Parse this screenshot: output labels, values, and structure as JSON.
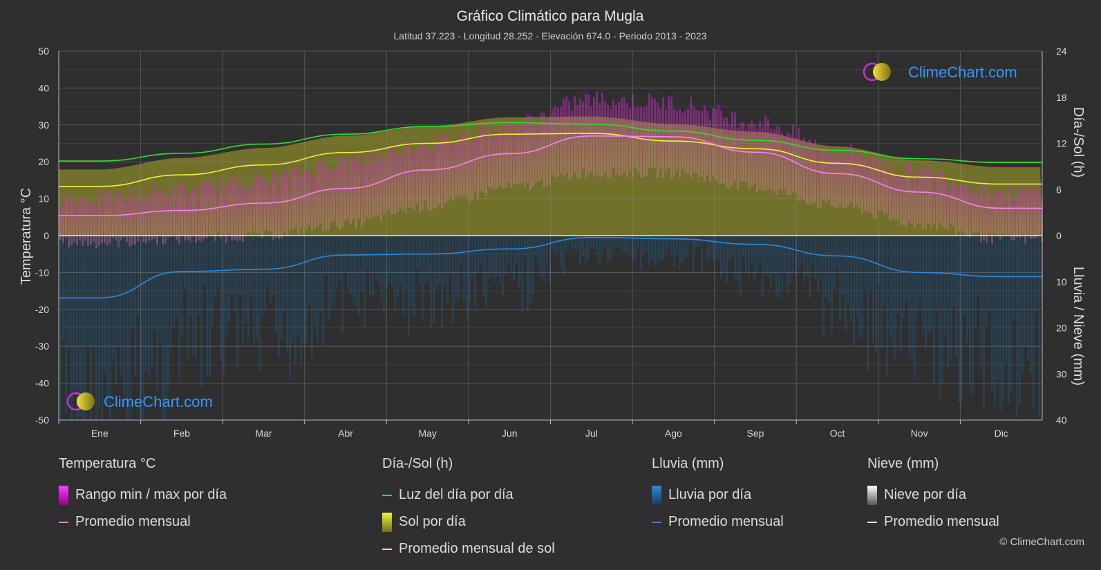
{
  "title": "Gráfico Climático para Mugla",
  "subtitle": "Latitud 37.223 - Longitud 28.252 - Elevación 674.0 - Periodo 2013 - 2023",
  "brand": "ClimeChart.com",
  "copyright": "© ClimeChart.com",
  "colors": {
    "background": "#2f2f2f",
    "temp_range": "#d020d0",
    "temp_avg": "#ff7ef5",
    "daylight": "#33dd33",
    "sunshine_fill": "#a8a828",
    "sunshine_avg": "#f0f040",
    "rain_fill": "#1e5f8c",
    "rain_avg": "#2a8ae0",
    "snow_avg": "#ffffff",
    "brand": "#3399ff"
  },
  "chart_data": {
    "type": "line",
    "categories": [
      "Ene",
      "Feb",
      "Mar",
      "Abr",
      "May",
      "Jun",
      "Jul",
      "Ago",
      "Sep",
      "Oct",
      "Nov",
      "Dic"
    ],
    "axes": {
      "left": {
        "label": "Temperatura °C",
        "range": [
          -50,
          50
        ],
        "ticks": [
          50,
          40,
          30,
          20,
          10,
          0,
          -10,
          -20,
          -30,
          -40,
          -50
        ]
      },
      "right_top": {
        "label": "Día-/Sol (h)",
        "range": [
          0,
          24
        ],
        "ticks": [
          24,
          18,
          12,
          6,
          0
        ]
      },
      "right_bottom": {
        "label": "Lluvia / Nieve (mm)",
        "range": [
          0,
          40
        ],
        "ticks": [
          0,
          10,
          20,
          30,
          40
        ]
      }
    },
    "grid": true,
    "series": [
      {
        "name": "Luz del día por día",
        "axis": "right_top",
        "values": [
          9.7,
          10.7,
          11.9,
          13.2,
          14.2,
          14.7,
          14.5,
          13.6,
          12.4,
          11.1,
          10.0,
          9.5
        ]
      },
      {
        "name": "Promedio mensual de sol",
        "axis": "right_top",
        "values": [
          6.4,
          7.9,
          9.2,
          10.8,
          12.0,
          13.2,
          13.3,
          12.3,
          11.3,
          9.4,
          7.6,
          6.7
        ]
      },
      {
        "name": "Promedio mensual",
        "group": "Temperatura °C",
        "values": [
          5.4,
          6.8,
          8.8,
          12.8,
          17.8,
          22.2,
          27.0,
          26.8,
          22.6,
          16.8,
          11.8,
          7.4
        ]
      },
      {
        "name": "Promedio mensual",
        "group": "Lluvia (mm)",
        "axis": "right_bottom",
        "values": [
          13.5,
          7.8,
          7.3,
          4.2,
          4.0,
          2.9,
          0.4,
          0.7,
          1.9,
          4.4,
          8.0,
          8.9
        ]
      },
      {
        "name": "Rango min / max por día",
        "group": "Temperatura °C",
        "min": [
          -2,
          -1,
          0,
          3,
          8,
          13,
          17,
          17,
          13,
          8,
          3,
          -1
        ],
        "max": [
          10,
          12,
          15,
          20,
          25,
          30,
          37,
          36,
          31,
          23,
          17,
          12
        ]
      }
    ]
  },
  "legend": {
    "temperature": {
      "title": "Temperatura °C",
      "items": [
        "Rango min / max por día",
        "Promedio mensual"
      ]
    },
    "sun": {
      "title": "Día-/Sol (h)",
      "items": [
        "Luz del día por día",
        "Sol por día",
        "Promedio mensual de sol"
      ]
    },
    "rain": {
      "title": "Lluvia (mm)",
      "items": [
        "Lluvia por día",
        "Promedio mensual"
      ]
    },
    "snow": {
      "title": "Nieve (mm)",
      "items": [
        "Nieve por día",
        "Promedio mensual"
      ]
    }
  }
}
